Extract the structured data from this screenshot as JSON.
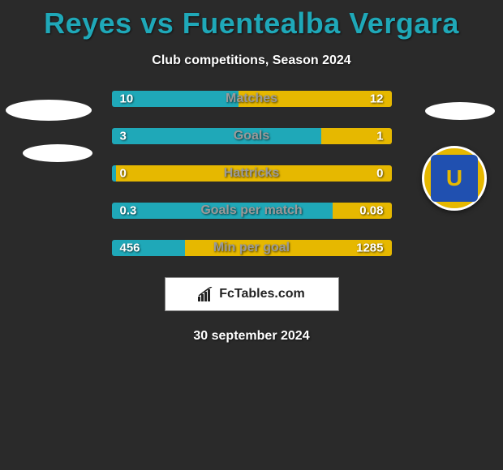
{
  "title": "Reyes vs Fuentealba Vergara",
  "subtitle": "Club competitions, Season 2024",
  "date": "30 september 2024",
  "brand": "FcTables.com",
  "colors": {
    "left_bar": "#1fa8b8",
    "right_bar": "#e6b800",
    "label_text": "#9a9a9a",
    "background": "#2a2a2a"
  },
  "stats": [
    {
      "label": "Matches",
      "left_val": "10",
      "right_val": "12",
      "left_pct": 45.5
    },
    {
      "label": "Goals",
      "left_val": "3",
      "right_val": "1",
      "left_pct": 75.0
    },
    {
      "label": "Hattricks",
      "left_val": "0",
      "right_val": "0",
      "left_pct": 1.5
    },
    {
      "label": "Goals per match",
      "left_val": "0.3",
      "right_val": "0.08",
      "left_pct": 78.9
    },
    {
      "label": "Min per goal",
      "left_val": "456",
      "right_val": "1285",
      "left_pct": 26.2
    }
  ]
}
